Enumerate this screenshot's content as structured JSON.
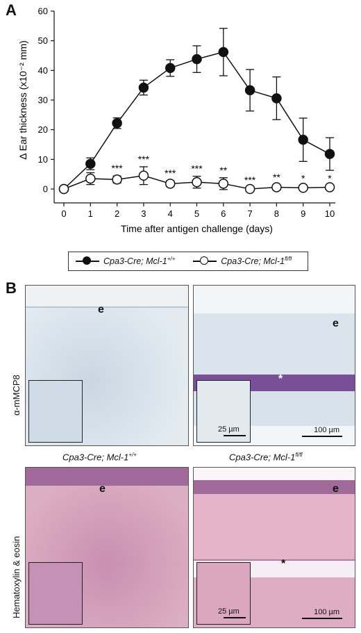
{
  "panel_a_label": "A",
  "panel_b_label": "B",
  "chart_data": {
    "type": "line",
    "title": "",
    "xlabel": "Time after antigen challenge (days)",
    "ylabel": "Δ Ear thickness (x10⁻² mm)",
    "x": [
      0,
      1,
      2,
      3,
      4,
      5,
      6,
      7,
      8,
      9,
      10
    ],
    "xlim": [
      0,
      10
    ],
    "ylim": [
      0,
      60
    ],
    "yticks": [
      0,
      10,
      20,
      30,
      40,
      50,
      60
    ],
    "grid": false,
    "series": [
      {
        "name": "Cpa3-Cre; Mcl-1+/+",
        "marker": "filled-circle",
        "values": [
          0,
          8.5,
          22.2,
          34.2,
          40.8,
          43.8,
          46.2,
          33.3,
          30.6,
          16.6,
          11.8
        ],
        "errors": [
          0,
          2.0,
          1.8,
          2.5,
          2.8,
          4.5,
          8.0,
          7.0,
          7.2,
          7.3,
          5.5
        ]
      },
      {
        "name": "Cpa3-Cre; Mcl-1fl/fl",
        "marker": "open-circle",
        "values": [
          0,
          3.5,
          3.2,
          4.5,
          1.8,
          2.3,
          1.8,
          0,
          0.6,
          0.4,
          0.6
        ],
        "errors": [
          0,
          2.0,
          1.2,
          3.0,
          1.0,
          2.0,
          2.0,
          0.5,
          0.8,
          0.6,
          0.5
        ]
      }
    ],
    "significance": [
      "",
      "",
      "***",
      "***",
      "***",
      "***",
      "**",
      "***",
      "**",
      "*",
      "*"
    ],
    "legend_position": "bottom"
  },
  "legend": {
    "wt_prefix": "Cpa3-Cre; Mcl-1",
    "wt_sup": "+/+",
    "ko_prefix": "Cpa3-Cre; Mcl-1",
    "ko_sup": "fl/fl"
  },
  "panel_b": {
    "row1_label": "α-mMCP8",
    "row2_label": "Hematoxylin & eosin",
    "col1_caption_prefix": "Cpa3-Cre; Mcl-1",
    "col1_caption_sup": "+/+",
    "col2_caption_prefix": "Cpa3-Cre; Mcl-1",
    "col2_caption_sup": "fl/fl",
    "epidermis_label": "e",
    "cartilage_label": "*",
    "scale_small": "25 µm",
    "scale_large": "100 µm",
    "colors": {
      "ihc_bg": "#dfe8ef",
      "he_bg": "#d9a9bd",
      "cartilage": "#7a4f9a"
    }
  }
}
